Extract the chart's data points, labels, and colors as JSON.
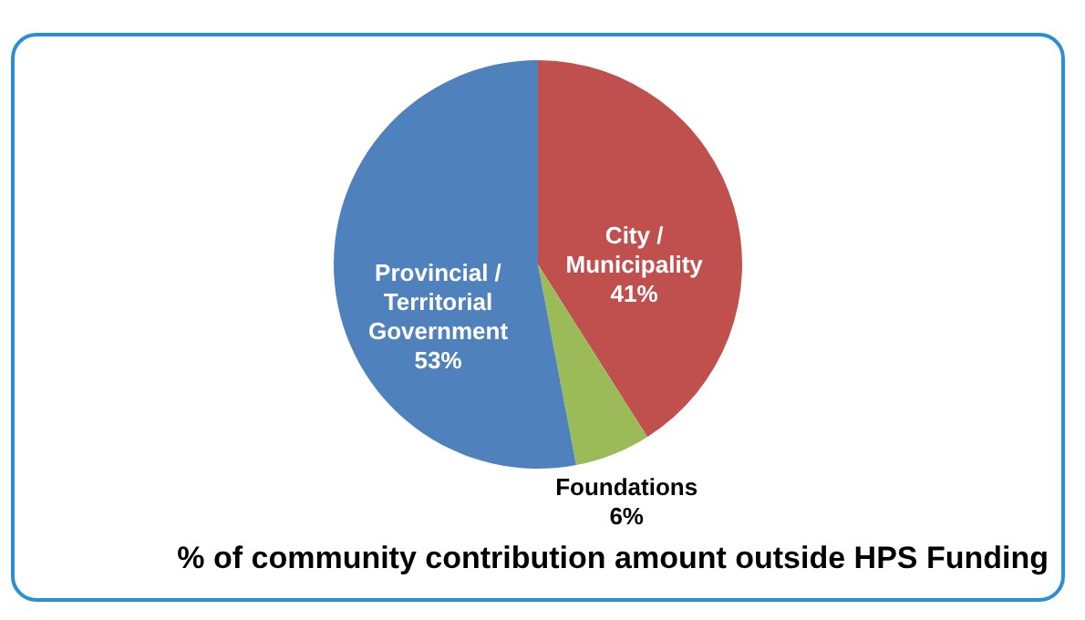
{
  "chart_data": {
    "type": "pie",
    "title": "% of community contribution amount outside HPS Funding",
    "categories": [
      "City / Municipality",
      "Foundations",
      "Provincial / Territorial Government"
    ],
    "values": [
      41,
      6,
      53
    ],
    "colors": [
      "#c0504d",
      "#9bbb59",
      "#4f81bd"
    ],
    "value_labels": [
      "41%",
      "6%",
      "53%"
    ]
  }
}
